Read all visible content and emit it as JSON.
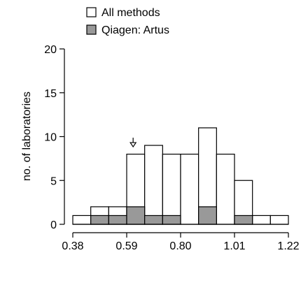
{
  "chart_data": {
    "type": "bar",
    "ylabel": "no. of laboratories",
    "xlabel": "",
    "x_ticks": [
      "0.38",
      "0.59",
      "0.80",
      "1.01",
      "1.22"
    ],
    "x_tick_values": [
      0.38,
      0.59,
      0.8,
      1.01,
      1.22
    ],
    "y_ticks": [
      "0",
      "5",
      "10",
      "15",
      "20"
    ],
    "y_tick_values": [
      0,
      5,
      10,
      15,
      20
    ],
    "xlim": [
      0.38,
      1.22
    ],
    "ylim": [
      0,
      20
    ],
    "bin_edges": [
      0.38,
      0.45,
      0.52,
      0.59,
      0.66,
      0.73,
      0.8,
      0.87,
      0.94,
      1.01,
      1.08,
      1.15,
      1.22
    ],
    "series": [
      {
        "name": "All methods",
        "values": [
          1,
          2,
          2,
          8,
          9,
          8,
          8,
          11,
          8,
          5,
          1,
          1
        ],
        "color": "#ffffff"
      },
      {
        "name": "Qiagen: Artus",
        "values": [
          0,
          1,
          1,
          2,
          1,
          1,
          0,
          2,
          0,
          1,
          0,
          0
        ],
        "color": "#999999"
      }
    ],
    "annotation": {
      "symbol": "arrow-down",
      "x": 0.615,
      "y": 9.0
    },
    "legend_placement": "top-center",
    "grid": false
  }
}
